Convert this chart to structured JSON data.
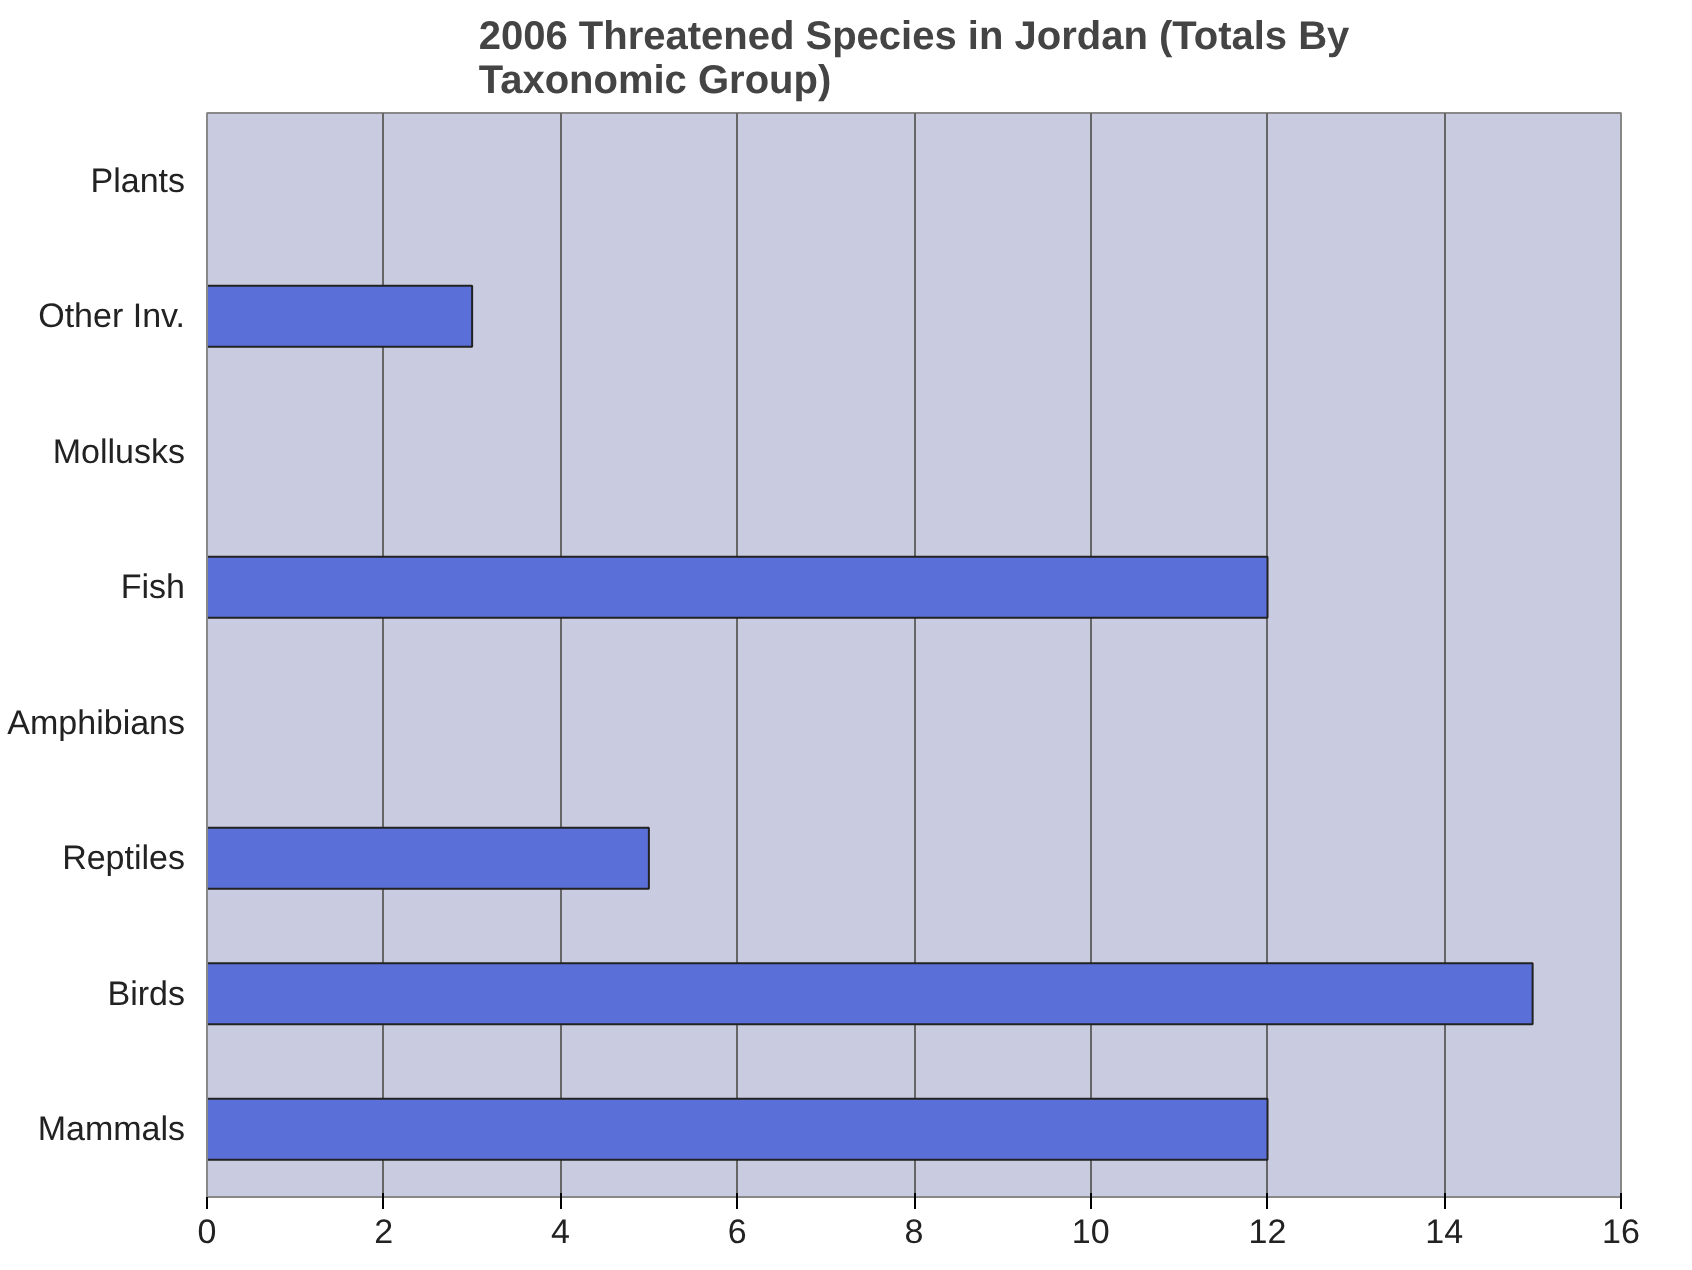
{
  "chart_data": {
    "type": "bar",
    "orientation": "horizontal",
    "title": "2006 Threatened Species in Jordan (Totals By Taxonomic Group)",
    "categories": [
      "Plants",
      "Other Inv.",
      "Mollusks",
      "Fish",
      "Amphibians",
      "Reptiles",
      "Birds",
      "Mammals"
    ],
    "values": [
      0,
      3,
      0,
      12,
      0,
      5,
      15,
      12
    ],
    "color": "#5b6fd8",
    "xlim": [
      0,
      16
    ],
    "xticks": [
      0,
      2,
      4,
      6,
      8,
      10,
      12,
      14,
      16
    ],
    "grid": "x"
  }
}
